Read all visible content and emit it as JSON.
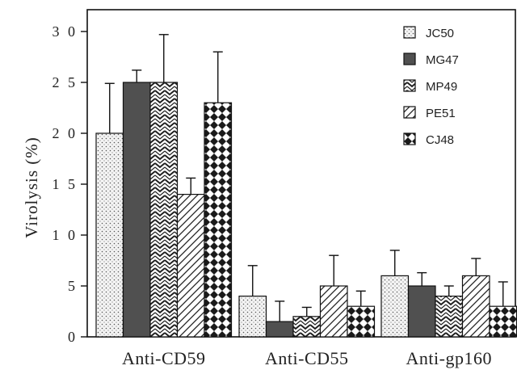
{
  "chart_data": {
    "type": "bar",
    "ylabel": "Virolysis (%)",
    "ylim": [
      0,
      30
    ],
    "yticks": [
      0,
      5,
      10,
      15,
      20,
      25,
      30
    ],
    "ytick_labels": [
      "0",
      "5",
      "1 0",
      "1 5",
      "2 0",
      "2 5",
      "3 0"
    ],
    "categories": [
      "Anti-CD59",
      "Anti-CD55",
      "Anti-gp160"
    ],
    "legend_position": "top-right",
    "grid": false,
    "series": [
      {
        "name": "JC50",
        "pattern": "dots",
        "color": "#f2f2f2",
        "values": [
          20,
          4,
          6
        ],
        "errors": [
          4.9,
          3.0,
          2.5
        ]
      },
      {
        "name": "MG47",
        "pattern": "solid",
        "color": "#555555",
        "values": [
          25,
          1.5,
          5
        ],
        "errors": [
          1.2,
          2.0,
          1.3
        ]
      },
      {
        "name": "MP49",
        "pattern": "zigzag",
        "color": "#2b2b2b",
        "values": [
          25,
          2,
          4
        ],
        "errors": [
          4.7,
          0.9,
          1.0
        ]
      },
      {
        "name": "PE51",
        "pattern": "diagonal",
        "color": "#2b2b2b",
        "values": [
          14,
          5,
          6
        ],
        "errors": [
          1.6,
          3.0,
          1.7
        ]
      },
      {
        "name": "CJ48",
        "pattern": "diamonds",
        "color": "#2b2b2b",
        "values": [
          23,
          3,
          3
        ],
        "errors": [
          5.0,
          1.5,
          2.4
        ]
      }
    ]
  }
}
